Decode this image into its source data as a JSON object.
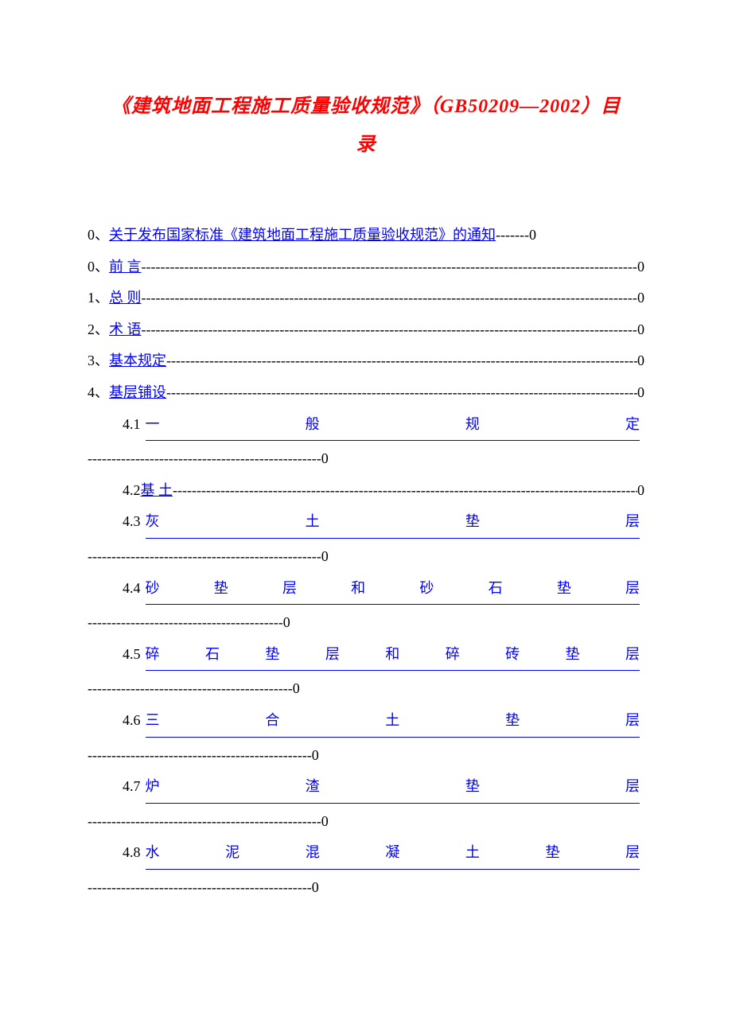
{
  "title_line1": "《建筑地面工程施工质量验收规范》（GB50209—2002）目",
  "title_line2": "录",
  "colors": {
    "title": "#ff0000",
    "link": "#0000ff",
    "text": "#000000",
    "background": "#ffffff"
  },
  "typography": {
    "title_fontsize": 24,
    "title_font": "KaiTi italic bold",
    "body_fontsize": 18,
    "body_font": "SimSun"
  },
  "toc": [
    {
      "prefix": "0、",
      "label": "关于发布国家标准《建筑地面工程施工质量验收规范》的通知",
      "page": "0",
      "dash_len": 7,
      "fill": false,
      "indent": false,
      "justify": false,
      "cont_dash": 0
    },
    {
      "prefix": "0、",
      "label": "前 言",
      "page": "0",
      "dash_len": 57,
      "fill": true,
      "indent": false,
      "justify": false,
      "cont_dash": 0
    },
    {
      "prefix": "1、",
      "label": "总 则",
      "page": "0",
      "dash_len": 57,
      "fill": true,
      "indent": false,
      "justify": false,
      "cont_dash": 0
    },
    {
      "prefix": "2、",
      "label": "术 语",
      "page": "0",
      "dash_len": 57,
      "fill": true,
      "indent": false,
      "justify": false,
      "cont_dash": 0
    },
    {
      "prefix": "3、",
      "label": "基本规定",
      "page": "0",
      "dash_len": 53,
      "fill": true,
      "indent": false,
      "justify": false,
      "cont_dash": 0
    },
    {
      "prefix": "4、",
      "label": "基层铺设",
      "page": "0",
      "dash_len": 53,
      "fill": true,
      "indent": false,
      "justify": false,
      "cont_dash": 0
    },
    {
      "prefix": "4.1 ",
      "label": "一般规定",
      "page": "0",
      "dash_len": 0,
      "fill": false,
      "indent": true,
      "justify": true,
      "cont_dash": 49
    },
    {
      "prefix": "4.2 ",
      "label": "基 土",
      "page": "0",
      "dash_len": 51,
      "fill": true,
      "indent": true,
      "justify": false,
      "cont_dash": 0
    },
    {
      "prefix": "4.3 ",
      "label": "灰土垫层",
      "page": "0",
      "dash_len": 0,
      "fill": false,
      "indent": true,
      "justify": true,
      "cont_dash": 49
    },
    {
      "prefix": "4.4 ",
      "label": "砂垫层和砂石垫层",
      "page": "0",
      "dash_len": 0,
      "fill": false,
      "indent": true,
      "justify": true,
      "cont_dash": 41
    },
    {
      "prefix": "4.5 ",
      "label": "碎石垫层和碎砖垫层",
      "page": "0",
      "dash_len": 0,
      "fill": false,
      "indent": true,
      "justify": true,
      "cont_dash": 43
    },
    {
      "prefix": "4.6 ",
      "label": "三合土垫层",
      "page": "0",
      "dash_len": 0,
      "fill": false,
      "indent": true,
      "justify": true,
      "cont_dash": 47
    },
    {
      "prefix": "4.7 ",
      "label": "炉渣垫层",
      "page": "0",
      "dash_len": 0,
      "fill": false,
      "indent": true,
      "justify": true,
      "cont_dash": 49
    },
    {
      "prefix": "4.8 ",
      "label": "水泥混凝土垫层",
      "page": "0",
      "dash_len": 0,
      "fill": false,
      "indent": true,
      "justify": true,
      "cont_dash": 47
    }
  ]
}
